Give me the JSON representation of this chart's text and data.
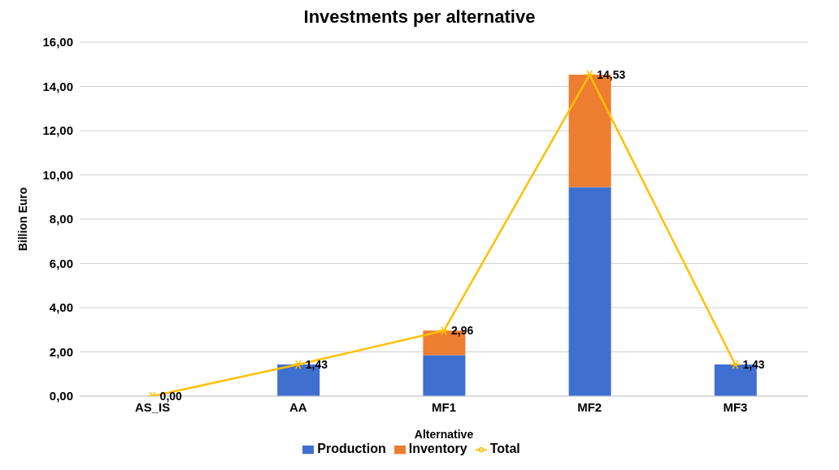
{
  "chart_data": {
    "type": "bar",
    "title": "Investments per alternative",
    "xlabel": "Alternative",
    "ylabel": "Billion Euro",
    "categories": [
      "AS_IS",
      "AA",
      "MF1",
      "MF2",
      "MF3"
    ],
    "series": [
      {
        "name": "Production",
        "color": "#3f6fcf",
        "values": [
          0,
          1.43,
          1.85,
          9.45,
          1.43
        ]
      },
      {
        "name": "Inventory",
        "color": "#ed7d31",
        "values": [
          0,
          0,
          1.11,
          5.08,
          0
        ]
      },
      {
        "name": "Total",
        "type": "line",
        "color": "#ffc000",
        "marker": "cross",
        "values": [
          0,
          1.43,
          2.96,
          14.53,
          1.43
        ],
        "value_labels": [
          "0,00",
          "1,43",
          "2,96",
          "14,53",
          "1,43"
        ]
      }
    ],
    "stacked": true,
    "ylim": [
      0,
      16
    ],
    "yticks": [
      {
        "value": 0,
        "label": "0,00"
      },
      {
        "value": 2,
        "label": "2,00"
      },
      {
        "value": 4,
        "label": "4,00"
      },
      {
        "value": 6,
        "label": "6,00"
      },
      {
        "value": 8,
        "label": "8,00"
      },
      {
        "value": 10,
        "label": "10,00"
      },
      {
        "value": 12,
        "label": "12,00"
      },
      {
        "value": 14,
        "label": "14,00"
      },
      {
        "value": 16,
        "label": "16,00"
      }
    ],
    "grid": "y",
    "legend": "bottom"
  }
}
